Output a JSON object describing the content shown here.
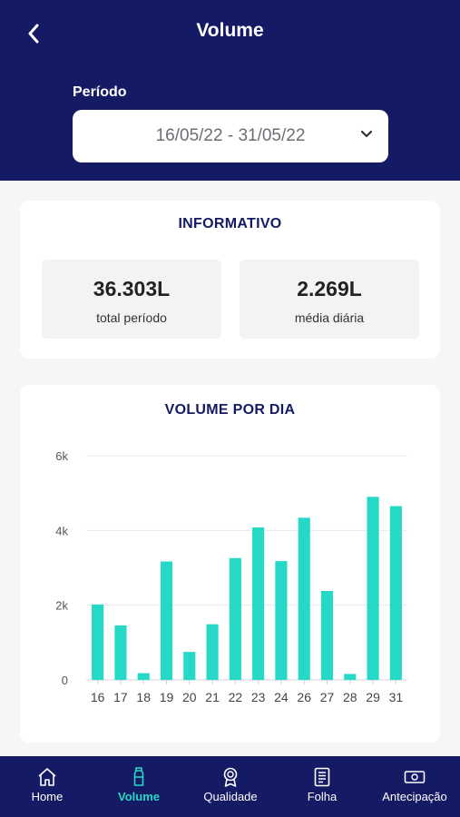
{
  "header": {
    "title": "Volume",
    "period_label": "Período",
    "period_value": "16/05/22 - 31/05/22"
  },
  "informativo": {
    "title": "INFORMATIVO",
    "stats": [
      {
        "value": "36.303L",
        "label": "total período"
      },
      {
        "value": "2.269L",
        "label": "média diária"
      }
    ]
  },
  "chart_card": {
    "title": "VOLUME POR DIA"
  },
  "chart_data": {
    "type": "bar",
    "title": "VOLUME POR DIA",
    "categories": [
      "16",
      "17",
      "18",
      "19",
      "20",
      "21",
      "22",
      "23",
      "24",
      "26",
      "27",
      "28",
      "29",
      "31"
    ],
    "values": [
      2020,
      1460,
      180,
      3170,
      750,
      1490,
      3260,
      4080,
      3180,
      4340,
      2380,
      160,
      4900,
      4650
    ],
    "ylim": [
      0,
      6000
    ],
    "yticks": [
      0,
      2000,
      4000,
      6000
    ],
    "ytick_labels": [
      "0",
      "2k",
      "4k",
      "6k"
    ],
    "grid": true,
    "bar_color": "#26d9c7"
  },
  "tabs": [
    {
      "label": "Home",
      "icon": "home-icon",
      "active": false
    },
    {
      "label": "Volume",
      "icon": "bottle-icon",
      "active": true
    },
    {
      "label": "Qualidade",
      "icon": "award-icon",
      "active": false
    },
    {
      "label": "Folha",
      "icon": "document-icon",
      "active": false
    },
    {
      "label": "Antecipação",
      "icon": "cash-icon",
      "active": false
    }
  ],
  "colors": {
    "primary": "#141a63",
    "accent": "#26d9c7",
    "background": "#f4f6f8"
  }
}
